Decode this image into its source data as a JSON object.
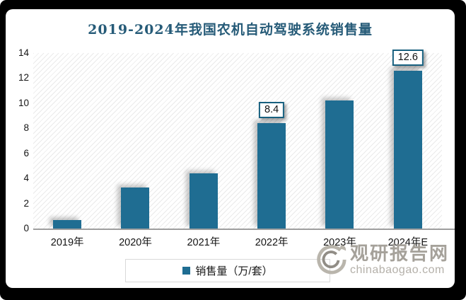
{
  "chart_data": {
    "type": "bar",
    "title": "2019-2024年我国农机自动驾驶系统销售量",
    "categories": [
      "2019年",
      "2020年",
      "2021年",
      "2022年",
      "2023年",
      "2024年E"
    ],
    "values": [
      0.7,
      3.3,
      4.4,
      8.4,
      10.2,
      12.6
    ],
    "data_labels": [
      "",
      "",
      "",
      "8.4",
      "",
      "12.6"
    ],
    "ylim": [
      0,
      14
    ],
    "yticks": [
      0,
      2,
      4,
      6,
      8,
      10,
      12,
      14
    ],
    "xlabel": "",
    "ylabel": "",
    "grid": false,
    "legend_position": "bottom",
    "legend": {
      "label": "销售量（万/套）"
    },
    "bar_color": "#1f6d92",
    "title_color": "#265b78",
    "plot_background": "diagonal-hatch"
  },
  "watermark": {
    "name": "观研报告网",
    "domain": "chinabaogao.com",
    "logo": "swirl-logo"
  }
}
